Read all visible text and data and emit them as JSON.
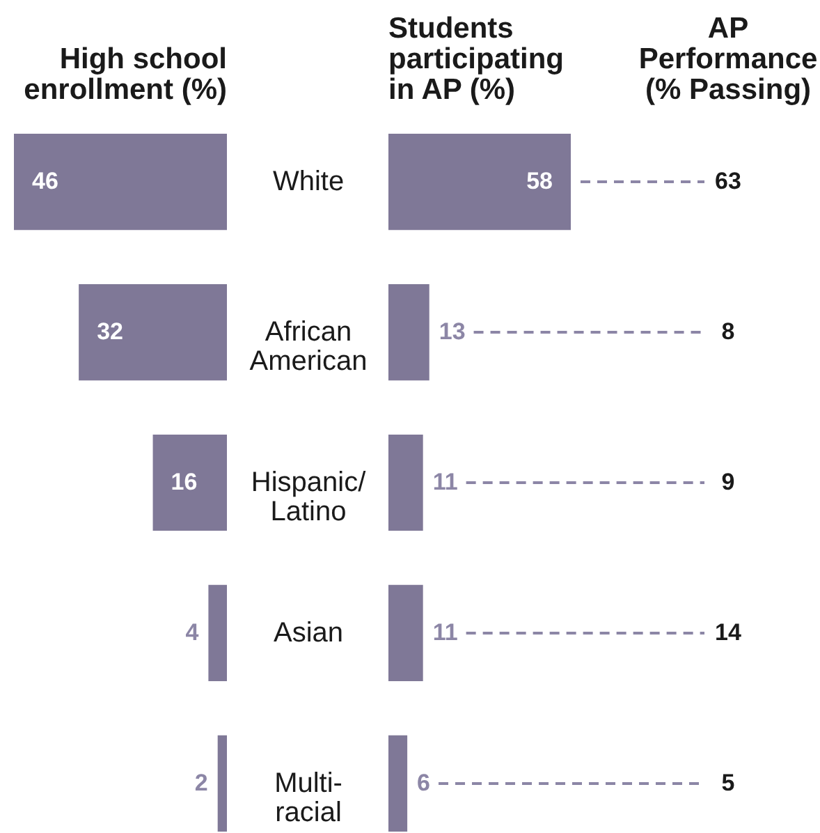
{
  "chart_data": [
    {
      "type": "bar",
      "orientation": "horizontal",
      "title": "High school enrollment (%)",
      "categories": [
        "White",
        "African American",
        "Hispanic/Latino",
        "Asian",
        "Multi-racial"
      ],
      "values": [
        46,
        32,
        16,
        4,
        2
      ],
      "color": "#7f7897",
      "xlim": [
        46,
        0
      ],
      "data_labels": true
    },
    {
      "type": "bar",
      "orientation": "horizontal",
      "title": "Students participating in AP (%)",
      "values": [
        58,
        13,
        11,
        11,
        6
      ],
      "color": "#7f7897",
      "xlim": [
        0,
        58
      ],
      "data_labels": true
    },
    {
      "type": "other",
      "title": "AP Performance (% Passing)",
      "values": [
        63,
        8,
        9,
        14,
        5
      ],
      "data_labels": true
    }
  ]
}
